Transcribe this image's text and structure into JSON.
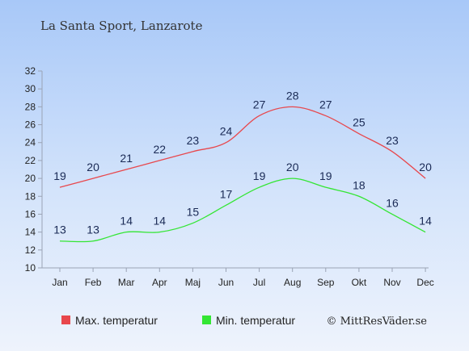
{
  "chart_data": {
    "type": "line",
    "title": "La Santa Sport, Lanzarote",
    "categories": [
      "Jan",
      "Feb",
      "Mar",
      "Apr",
      "Maj",
      "Jun",
      "Jul",
      "Aug",
      "Sep",
      "Okt",
      "Nov",
      "Dec"
    ],
    "series": [
      {
        "name": "Max. temperatur",
        "color": "#e8474c",
        "values": [
          19,
          20,
          21,
          22,
          23,
          24,
          27,
          28,
          27,
          25,
          23,
          20
        ]
      },
      {
        "name": "Min. temperatur",
        "color": "#33e633",
        "values": [
          13,
          13,
          14,
          14,
          15,
          17,
          19,
          20,
          19,
          18,
          16,
          14
        ]
      }
    ],
    "ylim": [
      10,
      32
    ],
    "yticks": [
      10,
      12,
      14,
      16,
      18,
      20,
      22,
      24,
      26,
      28,
      30,
      32
    ],
    "grid": false,
    "legend": "bottom-left"
  },
  "credit": "© MittResVäder.se"
}
